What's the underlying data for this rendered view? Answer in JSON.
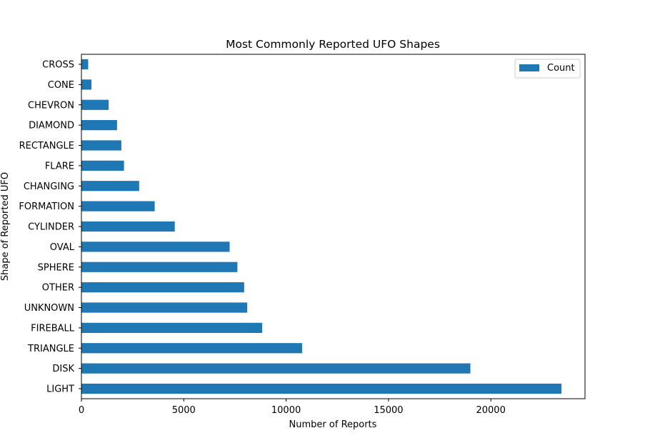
{
  "chart_data": {
    "type": "bar",
    "orientation": "horizontal",
    "title": "Most Commonly Reported UFO Shapes",
    "xlabel": "Number of Reports",
    "ylabel": "Shape of Reported UFO",
    "categories": [
      "LIGHT",
      "DISK",
      "TRIANGLE",
      "FIREBALL",
      "UNKNOWN",
      "OTHER",
      "SPHERE",
      "OVAL",
      "CYLINDER",
      "FORMATION",
      "CHANGING",
      "FLARE",
      "RECTANGLE",
      "DIAMOND",
      "CHEVRON",
      "CONE",
      "CROSS"
    ],
    "series": [
      {
        "name": "Count",
        "color": "#1f77b4",
        "values": [
          23450,
          19000,
          10780,
          8830,
          8100,
          7950,
          7620,
          7240,
          4560,
          3580,
          2820,
          2080,
          1950,
          1740,
          1330,
          490,
          330
        ]
      }
    ],
    "xlim": [
      0,
      24600
    ],
    "xticks": [
      0,
      5000,
      10000,
      15000,
      20000
    ],
    "grid": false,
    "legend": "top-right"
  }
}
